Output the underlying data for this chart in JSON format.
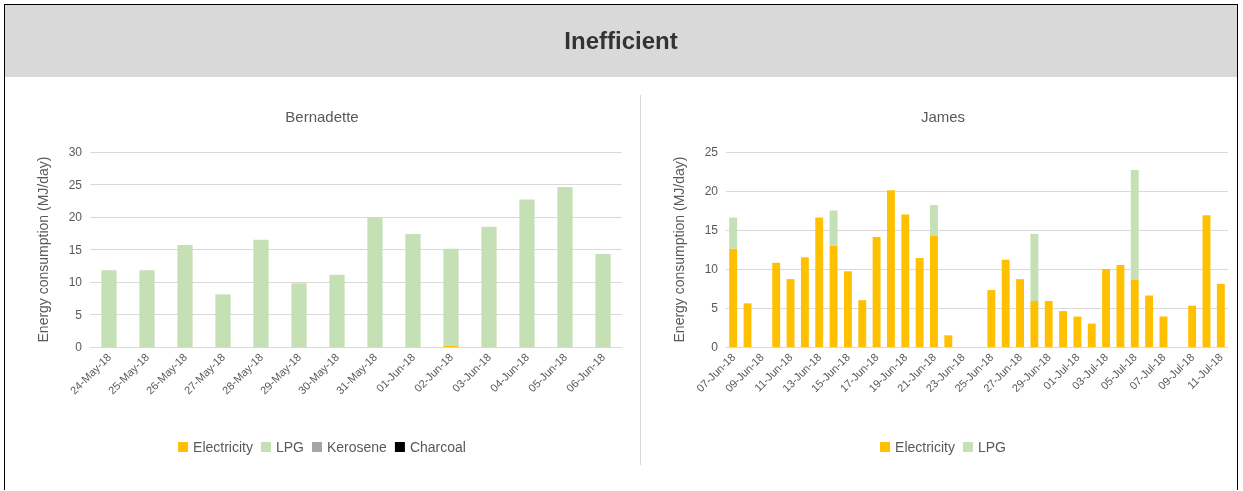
{
  "chart_data": [
    {
      "type": "bar",
      "title": "Bernadette",
      "ylabel": "Energy consumption (MJ/day)",
      "annotations": [
        "Inefficient"
      ],
      "stacked": true,
      "categories": [
        "24-May-18",
        "25-May-18",
        "26-May-18",
        "27-May-18",
        "28-May-18",
        "29-May-18",
        "30-May-18",
        "31-May-18",
        "01-Jun-18",
        "02-Jun-18",
        "03-Jun-18",
        "04-Jun-18",
        "05-Jun-18",
        "06-Jun-18"
      ],
      "series": [
        {
          "name": "Electricity",
          "color": "#ffc000",
          "values": [
            0,
            0,
            0,
            0,
            0,
            0,
            0,
            0,
            0,
            0.2,
            0,
            0,
            0,
            0
          ]
        },
        {
          "name": "LPG",
          "color": "#c5e0b4",
          "values": [
            11.8,
            11.8,
            15.7,
            8.1,
            16.5,
            9.8,
            11.1,
            20.0,
            17.4,
            14.9,
            18.5,
            22.7,
            24.6,
            14.3
          ]
        },
        {
          "name": "Kerosene",
          "color": "#a5a5a5",
          "values": [
            0,
            0,
            0,
            0,
            0,
            0,
            0,
            0,
            0,
            0,
            0,
            0,
            0,
            0
          ]
        },
        {
          "name": "Charcoal",
          "color": "#000000",
          "values": [
            0,
            0,
            0,
            0,
            0,
            0,
            0,
            0,
            0,
            0,
            0,
            0,
            0,
            0
          ]
        }
      ],
      "ylim": [
        0,
        30
      ],
      "yticks": [
        0,
        5,
        10,
        15,
        20,
        25,
        30
      ],
      "grid": "y",
      "legend": "bottom"
    },
    {
      "type": "bar",
      "title": "James",
      "ylabel": "Energy consumption (MJ/day)",
      "stacked": true,
      "categories": [
        "07-Jun-18",
        null,
        "09-Jun-18",
        null,
        "11-Jun-18",
        null,
        "13-Jun-18",
        null,
        "15-Jun-18",
        null,
        "17-Jun-18",
        null,
        "19-Jun-18",
        null,
        "21-Jun-18",
        null,
        "23-Jun-18",
        null,
        "25-Jun-18",
        null,
        "27-Jun-18",
        null,
        "29-Jun-18",
        null,
        "01-Jul-18",
        null,
        "03-Jul-18",
        null,
        "05-Jul-18",
        null,
        "07-Jul-18",
        null,
        "09-Jul-18",
        null,
        "11-Jul-18"
      ],
      "series": [
        {
          "name": "Electricity",
          "color": "#ffc000",
          "values": [
            12.6,
            5.6,
            null,
            10.8,
            8.7,
            11.5,
            16.6,
            13.0,
            9.7,
            6.0,
            14.1,
            20.1,
            17.0,
            11.4,
            14.3,
            1.5,
            null,
            null,
            7.3,
            11.2,
            8.7,
            5.9,
            5.9,
            4.6,
            3.9,
            3.0,
            10.0,
            10.5,
            8.6,
            6.6,
            3.9,
            null,
            5.3,
            16.9,
            8.1
          ]
        },
        {
          "name": "LPG",
          "color": "#c5e0b4",
          "values": [
            4.0,
            null,
            null,
            null,
            null,
            null,
            null,
            4.5,
            null,
            null,
            null,
            null,
            null,
            null,
            3.9,
            null,
            null,
            null,
            null,
            null,
            null,
            8.6,
            null,
            null,
            null,
            null,
            null,
            null,
            14.1,
            null,
            null,
            null,
            null,
            null,
            null
          ]
        }
      ],
      "ylim": [
        0,
        25
      ],
      "yticks": [
        0,
        5,
        10,
        15,
        20,
        25
      ],
      "grid": "y",
      "legend": "bottom"
    }
  ]
}
